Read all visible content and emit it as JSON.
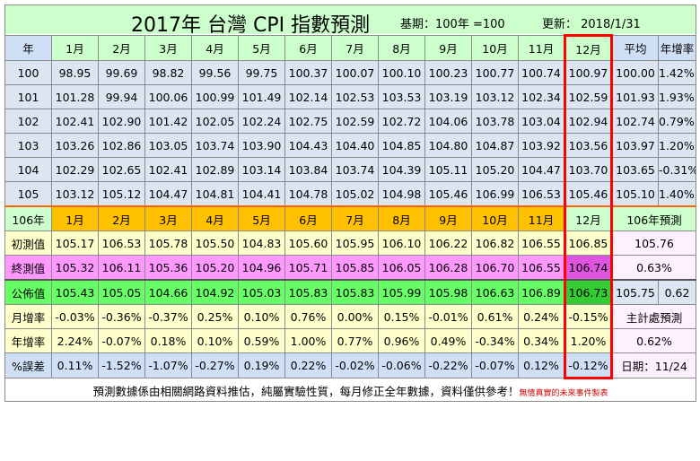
{
  "title": {
    "main": "2017年 台灣 CPI 指數預測",
    "base": "基期：100年 =100",
    "updated": "更新： 2018/1/31"
  },
  "header": {
    "year_label": "年",
    "months": [
      "1月",
      "2月",
      "3月",
      "4月",
      "5月",
      "6月",
      "7月",
      "8月",
      "9月",
      "10月",
      "11月",
      "12月"
    ],
    "avg_label": "平均",
    "growth_label": "年增率"
  },
  "history": [
    {
      "year": "100",
      "values": [
        "98.95",
        "99.69",
        "98.82",
        "99.56",
        "99.75",
        "100.37",
        "100.07",
        "100.10",
        "100.23",
        "100.77",
        "100.74",
        "100.97"
      ],
      "avg": "100.00",
      "growth": "1.42%"
    },
    {
      "year": "101",
      "values": [
        "101.28",
        "99.94",
        "100.06",
        "100.99",
        "101.49",
        "102.14",
        "102.53",
        "103.53",
        "103.19",
        "103.12",
        "102.34",
        "102.59"
      ],
      "avg": "101.93",
      "growth": "1.93%"
    },
    {
      "year": "102",
      "values": [
        "102.41",
        "102.90",
        "101.42",
        "102.05",
        "102.24",
        "102.75",
        "102.59",
        "102.72",
        "104.06",
        "103.78",
        "103.04",
        "102.94"
      ],
      "avg": "102.74",
      "growth": "0.79%"
    },
    {
      "year": "103",
      "values": [
        "103.26",
        "102.86",
        "103.05",
        "103.74",
        "103.90",
        "104.43",
        "104.40",
        "104.85",
        "104.80",
        "104.87",
        "103.92",
        "103.56"
      ],
      "avg": "103.97",
      "growth": "1.20%"
    },
    {
      "year": "104",
      "values": [
        "102.29",
        "102.65",
        "102.41",
        "102.89",
        "103.14",
        "103.84",
        "103.74",
        "104.39",
        "105.11",
        "105.20",
        "104.47",
        "103.70"
      ],
      "avg": "103.65",
      "growth": "-0.31%"
    },
    {
      "year": "105",
      "values": [
        "103.12",
        "105.12",
        "104.47",
        "104.81",
        "104.41",
        "104.78",
        "105.02",
        "104.98",
        "105.46",
        "106.99",
        "106.53",
        "105.46"
      ],
      "avg": "105.10",
      "growth": "1.40%"
    }
  ],
  "y106": {
    "year_label": "106年",
    "prediction_title": "106年預測",
    "initial": {
      "label": "初測值",
      "values": [
        "105.17",
        "106.53",
        "105.78",
        "105.50",
        "104.83",
        "105.60",
        "105.95",
        "106.10",
        "106.22",
        "106.82",
        "106.55",
        "106.85"
      ],
      "prediction": "105.76"
    },
    "final": {
      "label": "終測值",
      "values": [
        "105.32",
        "106.11",
        "105.36",
        "105.20",
        "104.96",
        "105.71",
        "105.85",
        "106.05",
        "106.28",
        "106.70",
        "106.55",
        "106.74"
      ],
      "prediction": "0.63%"
    },
    "published": {
      "label": "公佈值",
      "values": [
        "105.43",
        "105.05",
        "104.66",
        "104.92",
        "105.03",
        "105.83",
        "105.83",
        "105.99",
        "105.98",
        "106.63",
        "106.89",
        "106.73"
      ],
      "avg": "105.75",
      "extra": "0.62"
    },
    "monthly_growth": {
      "label": "月增率",
      "values": [
        "-0.03%",
        "-0.36%",
        "-0.37%",
        "0.25%",
        "0.10%",
        "0.76%",
        "0.00%",
        "0.15%",
        "-0.01%",
        "0.61%",
        "0.24%",
        "-0.15%"
      ]
    },
    "yearly_growth": {
      "label": "年增率",
      "values": [
        "2.24%",
        "-0.07%",
        "0.18%",
        "0.10%",
        "0.59%",
        "1.00%",
        "0.77%",
        "0.96%",
        "0.49%",
        "-0.34%",
        "0.34%",
        "1.20%"
      ]
    },
    "error": {
      "label": "%誤差",
      "values": [
        "0.11%",
        "-1.52%",
        "-1.07%",
        "-0.27%",
        "0.19%",
        "0.22%",
        "-0.02%",
        "-0.06%",
        "-0.22%",
        "-0.07%",
        "0.12%",
        "-0.12%"
      ]
    },
    "dgbas": {
      "title": "主計處預測",
      "value": "0.62%",
      "date": "日期：11/24"
    }
  },
  "footer": {
    "note": "預測數據係由相關網路資料推估，純屬實驗性質，每月修正全年數據，資料僅供參考！",
    "brand": "無情真實的未來事件製表"
  },
  "colors": {
    "red_text": "#ff0000",
    "title_bg": "#ccffcc",
    "month_hdr_bg": "#ffc000",
    "final_bg": "#ff99ff",
    "published_bg": "#66ff66"
  }
}
